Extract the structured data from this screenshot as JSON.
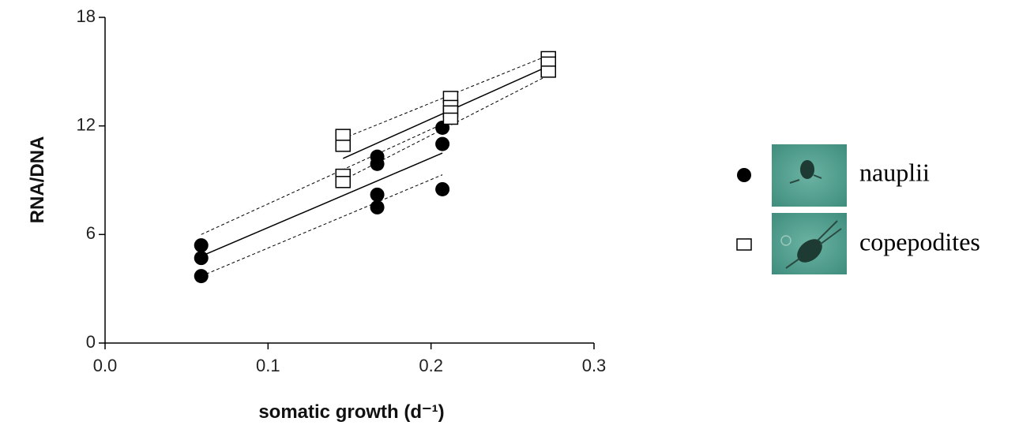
{
  "chart_data": {
    "type": "scatter",
    "xlabel": "somatic growth (d⁻¹)",
    "ylabel": "RNA/DNA",
    "xlim": [
      0,
      0.3
    ],
    "ylim": [
      0,
      18
    ],
    "xticks": [
      {
        "value": 0,
        "label": "0.0"
      },
      0.1,
      0.2,
      0.3
    ],
    "yticks": [
      0,
      6,
      12,
      18
    ],
    "series": [
      {
        "name": "nauplii",
        "marker": "circle",
        "color": "#000000",
        "x": [
          0.059,
          0.059,
          0.059,
          0.167,
          0.167,
          0.167,
          0.167,
          0.207,
          0.207,
          0.207
        ],
        "y": [
          5.4,
          4.7,
          3.7,
          10.3,
          9.9,
          8.2,
          7.5,
          11.9,
          11.0,
          8.5
        ]
      },
      {
        "name": "copepodites",
        "marker": "square",
        "color": "#000000",
        "x": [
          0.146,
          0.146,
          0.146,
          0.146,
          0.212,
          0.212,
          0.212,
          0.212,
          0.272,
          0.272,
          0.272
        ],
        "y": [
          11.5,
          10.9,
          9.3,
          8.9,
          13.6,
          13.1,
          12.8,
          12.4,
          15.8,
          15.5,
          15.0
        ]
      }
    ],
    "fit_lines": [
      {
        "x": [
          0.059,
          0.207
        ],
        "y": [
          4.8,
          10.5
        ],
        "dashed": false
      },
      {
        "x": [
          0.059,
          0.207
        ],
        "y": [
          6.0,
          12.1
        ],
        "dashed": true
      },
      {
        "x": [
          0.059,
          0.207
        ],
        "y": [
          3.7,
          9.3
        ],
        "dashed": true
      },
      {
        "x": [
          0.146,
          0.272
        ],
        "y": [
          10.2,
          15.3
        ],
        "dashed": false
      },
      {
        "x": [
          0.146,
          0.272
        ],
        "y": [
          11.3,
          15.9
        ],
        "dashed": true
      },
      {
        "x": [
          0.146,
          0.272
        ],
        "y": [
          9.0,
          14.8
        ],
        "dashed": true
      }
    ]
  }
}
